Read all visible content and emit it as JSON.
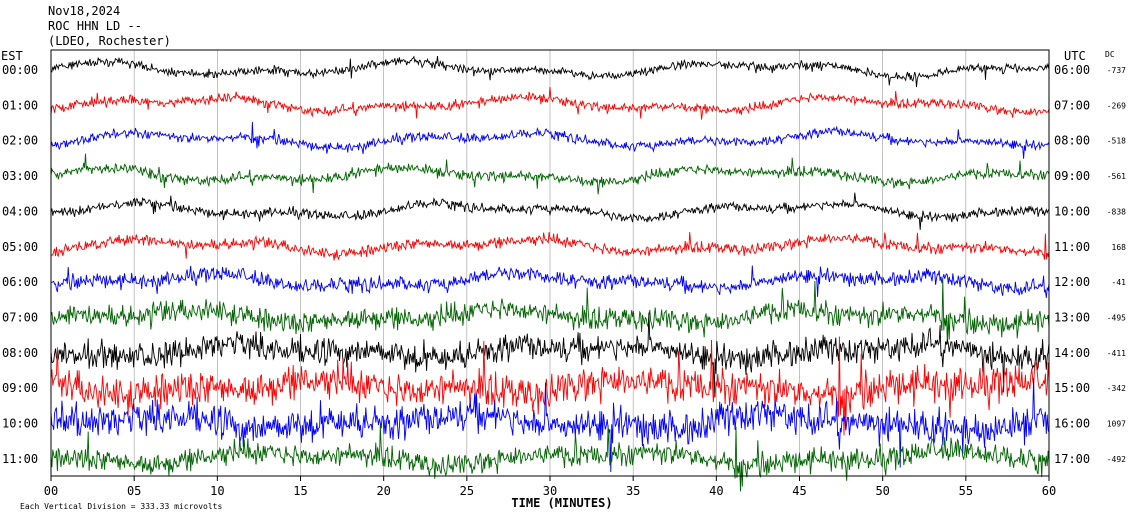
{
  "header": {
    "date": "Nov18,2024",
    "station": "ROC HHN LD --",
    "network": "(LDEO, Rochester)"
  },
  "footer": {
    "scale_note": "Each Vertical Division = 333.33 microvolts"
  },
  "chart_data": {
    "type": "line",
    "title": "",
    "xlabel": "TIME (MINUTES)",
    "x_ticks": [
      "00",
      "05",
      "10",
      "15",
      "20",
      "25",
      "30",
      "35",
      "40",
      "45",
      "50",
      "55",
      "60"
    ],
    "xlim": [
      0,
      60
    ],
    "left_axis_label": "EST",
    "right_axis_label": "UTC",
    "dc_label": "DC",
    "grid": true,
    "series_colors": [
      "#000000",
      "#ff0000",
      "#0000ff",
      "#006400"
    ],
    "traces": [
      {
        "est": "00:00",
        "utc": "06:00",
        "dc": "-737",
        "color": "#000000"
      },
      {
        "est": "01:00",
        "utc": "07:00",
        "dc": "-269",
        "color": "#ff0000"
      },
      {
        "est": "02:00",
        "utc": "08:00",
        "dc": "-518",
        "color": "#0000ff"
      },
      {
        "est": "03:00",
        "utc": "09:00",
        "dc": "-561",
        "color": "#006400"
      },
      {
        "est": "04:00",
        "utc": "10:00",
        "dc": "-838",
        "color": "#000000"
      },
      {
        "est": "05:00",
        "utc": "11:00",
        "dc": "168",
        "color": "#ff0000"
      },
      {
        "est": "06:00",
        "utc": "12:00",
        "dc": "-41",
        "color": "#0000ff"
      },
      {
        "est": "07:00",
        "utc": "13:00",
        "dc": "-495",
        "color": "#006400"
      },
      {
        "est": "08:00",
        "utc": "14:00",
        "dc": "-411",
        "color": "#000000"
      },
      {
        "est": "09:00",
        "utc": "15:00",
        "dc": "-342",
        "color": "#ff0000"
      },
      {
        "est": "10:00",
        "utc": "16:00",
        "dc": "1097",
        "color": "#0000ff"
      },
      {
        "est": "11:00",
        "utc": "17:00",
        "dc": "-492",
        "color": "#006400"
      }
    ],
    "noise_level_by_trace": [
      0.8,
      0.9,
      0.9,
      1.0,
      0.9,
      1.1,
      1.4,
      2.2,
      2.6,
      3.4,
      3.2,
      2.2
    ]
  }
}
